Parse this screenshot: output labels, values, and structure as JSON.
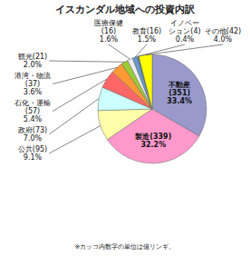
{
  "chart_data": {
    "type": "pie",
    "title": "イスカンダル地域への投資内訳",
    "categories": [
      "不動産\n(351)\n33.4%",
      "製造(339)\n32.2%",
      "公共(95)\n9.1%",
      "政府(73)\n7.0%",
      "石化・運輸\n(57)\n5.4%",
      "港湾・物流\n(37)\n3.6%",
      "観光(21)\n2.0%",
      "医療保健\n(16)\n1.6%",
      "教育(16)\n1.5%",
      "イノベー\nション(4)\n0.4%",
      "その他(42)\n4.0%"
    ],
    "values": [
      33.4,
      32.2,
      9.1,
      7.0,
      5.4,
      3.6,
      2.0,
      1.6,
      1.5,
      0.4,
      4.0
    ],
    "colors": [
      "#9999cc",
      "#ff99cc",
      "#ffffaa",
      "#ccffff",
      "#ff6666",
      "#ff9933",
      "#99cc33",
      "#eeeeee",
      "#6699cc",
      "#336699",
      "#ffff00"
    ],
    "annotations": [
      "※カッコ内数字の単位は億リンギ。"
    ]
  }
}
